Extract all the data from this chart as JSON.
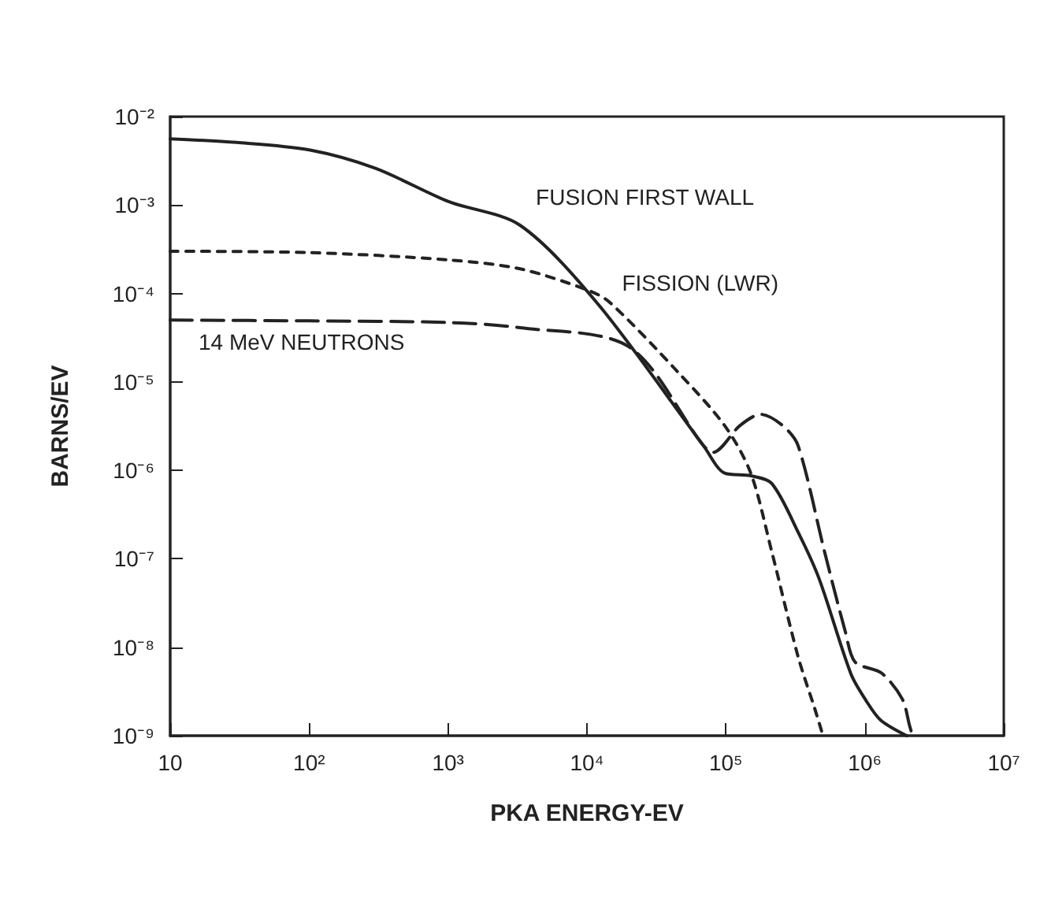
{
  "chart_data": {
    "type": "line",
    "xlabel": "PKA ENERGY-EV",
    "ylabel": "BARNS/EV",
    "log": "xy",
    "grid": false,
    "legend": false,
    "xlim": [
      10,
      10000000
    ],
    "ylim": [
      1e-09,
      0.01
    ],
    "xticks": [
      10,
      {
        "value": 100,
        "label": "10²"
      },
      {
        "value": 1000,
        "label": "10³"
      },
      {
        "value": 10000,
        "label": "10⁴"
      },
      {
        "value": 100000,
        "label": "10⁵"
      },
      {
        "value": 1000000,
        "label": "10⁶"
      },
      {
        "value": 10000000,
        "label": "10⁷"
      }
    ],
    "yticks": [
      {
        "value": 1e-09,
        "label": "10⁻⁹"
      },
      {
        "value": 1e-08,
        "label": "10⁻⁸"
      },
      {
        "value": 1e-07,
        "label": "10⁻⁷"
      },
      {
        "value": 1e-06,
        "label": "10⁻⁶"
      },
      {
        "value": 1e-05,
        "label": "10⁻⁵"
      },
      {
        "value": 0.0001,
        "label": "10⁻⁴"
      },
      {
        "value": 0.001,
        "label": "10⁻³"
      },
      {
        "value": 0.01,
        "label": "10⁻²"
      }
    ],
    "series": [
      {
        "name": "FUSION FIRST WALL",
        "color": "#222222",
        "line_style": "solid",
        "x": [
          10,
          30,
          100,
          300,
          1000,
          3300,
          12000,
          69000,
          98000,
          151000,
          214000,
          331000,
          468000,
          794000,
          1020000,
          1300000,
          2000000
        ],
        "values": [
          0.0056,
          0.0051,
          0.0042,
          0.0026,
          0.0011,
          0.00059,
          7.6e-05,
          1.9e-06,
          9.3e-07,
          8.7e-07,
          7.1e-07,
          2e-07,
          6e-08,
          5e-09,
          2.5e-09,
          1.5e-09,
          1e-09
        ]
      },
      {
        "name": "FISSION (LWR)",
        "color": "#222222",
        "line_style": "dashed",
        "x": [
          10,
          100,
          1000,
          3300,
          10000,
          14500,
          45000,
          98000,
          151000,
          214000,
          331000,
          437000,
          500000
        ],
        "values": [
          0.0003,
          0.00029,
          0.00024,
          0.00019,
          0.00011,
          8e-05,
          1.3e-05,
          3.2e-06,
          9.3e-07,
          1.2e-07,
          7.8e-09,
          2e-09,
          1e-09
        ]
      },
      {
        "name": "14 MeV NEUTRONS",
        "color": "#222222",
        "line_style": "dashed",
        "x": [
          10,
          100,
          1000,
          3300,
          20000,
          69000,
          81000,
          126000,
          178000,
          257000,
          331000,
          513000,
          724000,
          851000,
          1320000,
          1860000,
          2100000,
          2200000
        ],
        "values": [
          5e-05,
          4.9e-05,
          4.7e-05,
          4.1e-05,
          2.5e-05,
          1.9e-06,
          1.6e-06,
          3.2e-06,
          4.3e-06,
          3.2e-06,
          1.9e-06,
          1.2e-07,
          1.5e-08,
          6.8e-09,
          5.1e-09,
          2.6e-09,
          1.3e-09,
          1e-09
        ]
      }
    ]
  }
}
